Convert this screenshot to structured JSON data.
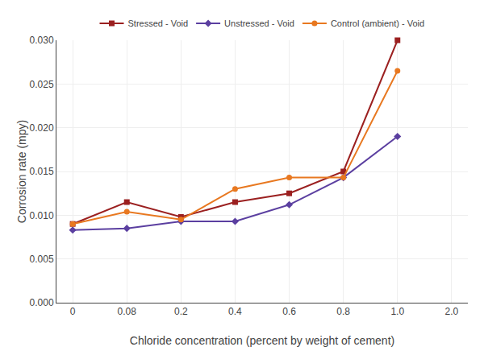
{
  "chart_data": {
    "type": "line",
    "xlabel": "Chloride concentration (percent by weight of cement)",
    "ylabel": "Corrosion rate (mpy)",
    "categories": [
      "0",
      "0.08",
      "0.2",
      "0.4",
      "0.6",
      "0.8",
      "1.0",
      "2.0"
    ],
    "series": [
      {
        "name": "Stressed - Void",
        "color": "#9B2020",
        "marker": "square",
        "values": [
          0.009,
          0.0115,
          0.0098,
          0.0115,
          0.0125,
          0.015,
          0.03,
          null
        ]
      },
      {
        "name": "Unstressed - Void",
        "color": "#5B3FA0",
        "marker": "diamond",
        "values": [
          0.0083,
          0.0085,
          0.0093,
          0.0093,
          0.0112,
          0.0143,
          0.019,
          null
        ]
      },
      {
        "name": "Control (ambient) - Void",
        "color": "#E87820",
        "marker": "circle",
        "values": [
          0.009,
          0.0104,
          0.0095,
          0.013,
          0.0143,
          0.0143,
          0.0265,
          null
        ]
      }
    ],
    "ylim": [
      0.0,
      0.03
    ],
    "yticks": [
      {
        "value": 0.0,
        "label": "0.000"
      },
      0.005,
      {
        "value": 0.01,
        "label": "0.010"
      },
      0.015,
      {
        "value": 0.02,
        "label": "0.020"
      },
      0.025,
      {
        "value": 0.03,
        "label": "0.030"
      }
    ],
    "grid": true,
    "legend": "top"
  }
}
